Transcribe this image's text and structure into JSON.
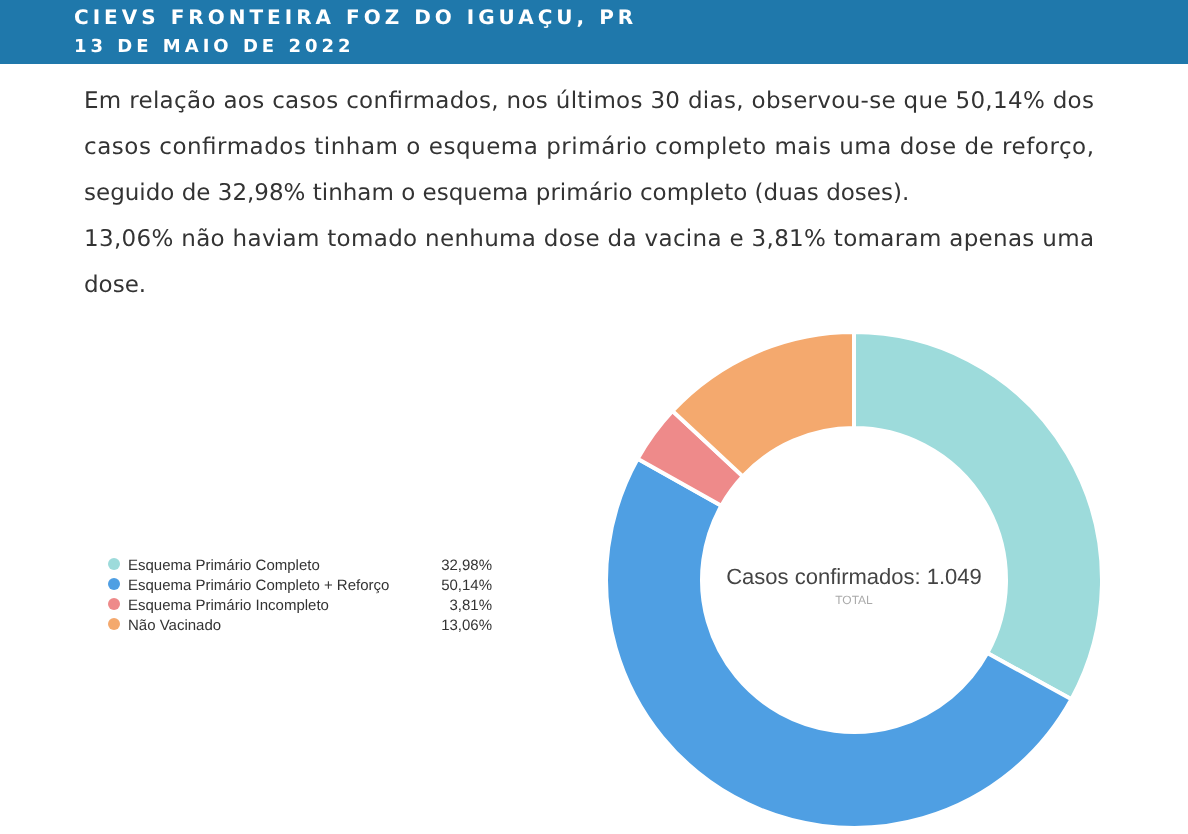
{
  "chart_data": {
    "type": "donut",
    "title": "CIEVS FRONTEIRA FOZ DO IGUAÇU, PR",
    "subtitle": "13 DE MAIO DE 2022",
    "annotations": [
      "Em relação aos casos confirmados, nos últimos 30 dias, observou-se que 50,14% dos casos confirmados tinham o esquema primário completo mais uma dose de reforço, seguido de 32,98% tinham o esquema primário completo (duas doses).",
      "13,06% não haviam tomado nenhuma dose da vacina e 3,81% tomaram apenas uma dose.",
      "Casos confirmados: 1.049",
      "TOTAL"
    ],
    "categories": [
      "Esquema Primário Completo",
      "Esquema Primário Completo + Reforço",
      "Esquema Primário Incompleto",
      "Não Vacinado"
    ],
    "values": [
      32.98,
      50.14,
      3.81,
      13.06
    ],
    "value_labels": [
      "32,98%",
      "50,14%",
      "3,81%",
      "13,06%"
    ],
    "colors": [
      "#9ddbdb",
      "#4f9fe3",
      "#ee8a8a",
      "#f4a96e"
    ],
    "legend": "left"
  }
}
